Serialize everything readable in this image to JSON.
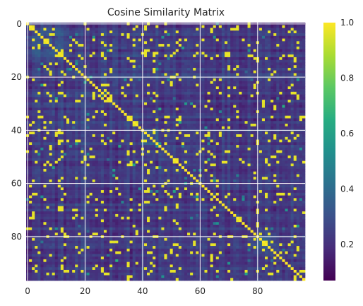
{
  "chart_data": {
    "type": "heatmap",
    "title": "Cosine Similarity Matrix",
    "xlabel": "",
    "ylabel": "",
    "size": 97,
    "x_ticks": [
      "0",
      "20",
      "40",
      "60",
      "80"
    ],
    "y_ticks": [
      "0",
      "20",
      "40",
      "60",
      "80"
    ],
    "tick_values": [
      0,
      20,
      40,
      60,
      80
    ],
    "diagonal_value": 1.0,
    "value_range": [
      0.07,
      1.0
    ],
    "colorbar": {
      "colormap": "viridis",
      "ticks": [
        "0.2",
        "0.4",
        "0.6",
        "0.8",
        "1.0"
      ],
      "tick_values": [
        0.2,
        0.4,
        0.6,
        0.8,
        1.0
      ]
    },
    "grid": true,
    "high_similarity_blocks": [
      [
        0,
        13
      ],
      [
        26,
        27
      ],
      [
        40,
        45
      ],
      [
        59,
        60
      ],
      [
        79,
        86
      ]
    ],
    "yellow_columns": [
      1,
      2,
      6,
      8,
      11,
      12,
      24,
      26,
      27,
      29,
      35,
      36,
      41,
      42,
      44,
      48,
      50,
      52,
      64,
      79,
      80,
      83,
      84,
      86,
      93
    ]
  }
}
